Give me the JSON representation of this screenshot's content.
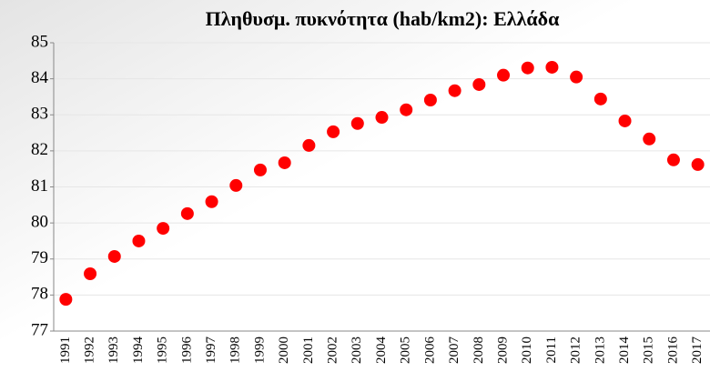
{
  "chart_data": {
    "type": "scatter",
    "title": "Πληθυσμ. πυκνότητα (hab/km2): Ελλάδα",
    "categories": [
      "1991",
      "1992",
      "1993",
      "1994",
      "1995",
      "1996",
      "1997",
      "1998",
      "1999",
      "2000",
      "2001",
      "2002",
      "2003",
      "2004",
      "2005",
      "2006",
      "2007",
      "2008",
      "2009",
      "2010",
      "2011",
      "2012",
      "2013",
      "2014",
      "2015",
      "2016",
      "2017"
    ],
    "values": [
      77.88,
      78.59,
      79.07,
      79.5,
      79.85,
      80.26,
      80.59,
      81.04,
      81.47,
      81.67,
      82.15,
      82.53,
      82.76,
      82.93,
      83.14,
      83.41,
      83.67,
      83.84,
      84.1,
      84.3,
      84.32,
      84.05,
      83.44,
      82.83,
      82.33,
      81.75,
      81.62
    ],
    "color": "#ff0000",
    "ylim": [
      77,
      85
    ],
    "yticks": [
      77,
      78,
      79,
      80,
      81,
      82,
      83,
      84,
      85
    ],
    "grid": true
  }
}
